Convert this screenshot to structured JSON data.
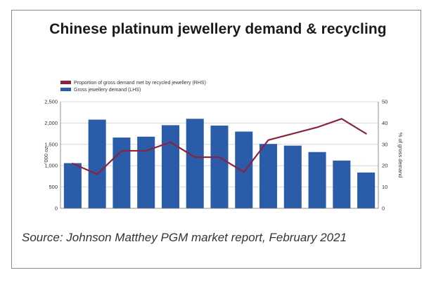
{
  "title": "Chinese platinum jewellery demand & recycling",
  "source": "Source: Johnson Matthey PGM market report, February 2021",
  "colors": {
    "bar": "#2a5caa",
    "line": "#8b2340",
    "axis": "#777777"
  },
  "chart_data": {
    "type": "bar",
    "categories": [
      "",
      "",
      "",
      "",
      "",
      "",
      "",
      "",
      "",
      "",
      "",
      "",
      ""
    ],
    "series": [
      {
        "name": "Gross jewellery demand (LHS)",
        "type": "bar",
        "axis": "left",
        "values": [
          1060,
          2080,
          1660,
          1680,
          1950,
          2100,
          1940,
          1800,
          1510,
          1470,
          1320,
          1120,
          840
        ]
      },
      {
        "name": "Proportion of gross demand met by recycled jewellery (RHS)",
        "type": "line",
        "axis": "right",
        "values": [
          21,
          16,
          27,
          27,
          31,
          24,
          24,
          17,
          32,
          35,
          38,
          42,
          35
        ]
      }
    ],
    "ylabel_left": "'000 oz",
    "ylabel_right": "% of gross demand",
    "ylim_left": [
      0,
      2500
    ],
    "ylim_right": [
      0,
      50
    ],
    "yticks_left": [
      "0",
      "500",
      "1,000",
      "1,500",
      "2,000",
      "2,500"
    ],
    "yticks_right": [
      "0",
      "10",
      "20",
      "30",
      "40",
      "50"
    ],
    "grid": true,
    "legend_position": "top-left"
  }
}
